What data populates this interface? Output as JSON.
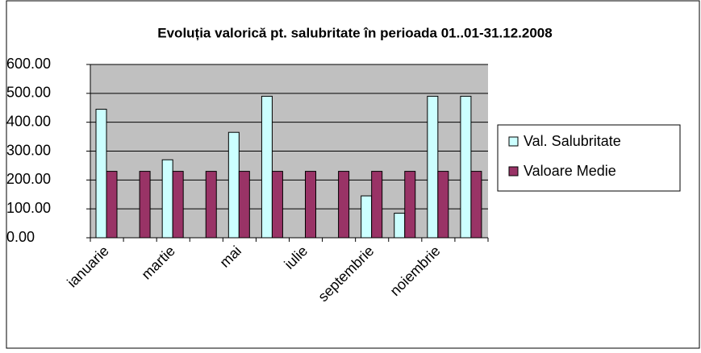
{
  "chart_data": {
    "type": "bar",
    "title": "Evoluția valorică pt. salubritate în perioada 01..01-31.12.2008",
    "categories": [
      "ianuarie",
      null,
      "martie",
      null,
      "mai",
      null,
      "iulie",
      null,
      "septembrie",
      null,
      "noiembrie",
      null
    ],
    "series": [
      {
        "name": "Val. Salubritate",
        "color": "#ccffff",
        "values": [
          445,
          0,
          270,
          0,
          365,
          490,
          0,
          0,
          145,
          85,
          490,
          490
        ]
      },
      {
        "name": "Valoare Medie",
        "color": "#993366",
        "values": [
          230,
          230,
          230,
          230,
          230,
          230,
          230,
          230,
          230,
          230,
          230,
          230
        ]
      }
    ],
    "ylim": [
      0,
      600
    ],
    "yticks": [
      {
        "value": 0,
        "label": "0.00"
      },
      {
        "value": 100,
        "label": "100.00"
      },
      {
        "value": 200,
        "label": "200.00"
      },
      {
        "value": 300,
        "label": "300.00"
      },
      {
        "value": 400,
        "label": "400.00"
      },
      {
        "value": 500,
        "label": "500.00"
      },
      {
        "value": 600,
        "label": "600.00"
      }
    ],
    "grid": true,
    "legend": "right"
  }
}
